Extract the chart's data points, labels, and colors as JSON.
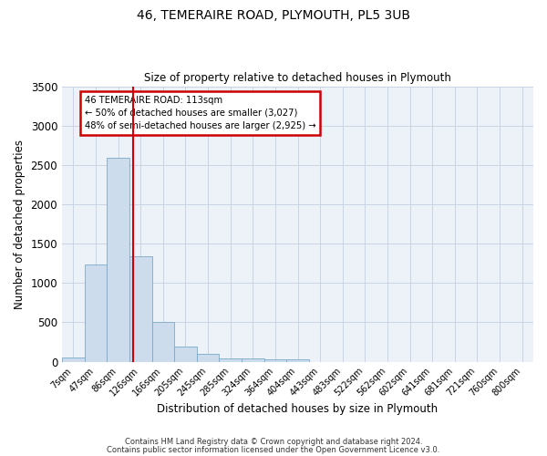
{
  "title_line1": "46, TEMERAIRE ROAD, PLYMOUTH, PL5 3UB",
  "title_line2": "Size of property relative to detached houses in Plymouth",
  "xlabel": "Distribution of detached houses by size in Plymouth",
  "ylabel": "Number of detached properties",
  "bar_labels": [
    "7sqm",
    "47sqm",
    "86sqm",
    "126sqm",
    "166sqm",
    "205sqm",
    "245sqm",
    "285sqm",
    "324sqm",
    "364sqm",
    "404sqm",
    "443sqm",
    "483sqm",
    "522sqm",
    "562sqm",
    "602sqm",
    "641sqm",
    "681sqm",
    "721sqm",
    "760sqm",
    "800sqm"
  ],
  "bar_values": [
    55,
    1230,
    2590,
    1340,
    500,
    195,
    100,
    45,
    45,
    30,
    30,
    0,
    0,
    0,
    0,
    0,
    0,
    0,
    0,
    0,
    0
  ],
  "bar_color": "#ccdcec",
  "bar_edge_color": "#7aaaca",
  "vline_x": 2.65,
  "annotation_line1": "46 TEMERAIRE ROAD: 113sqm",
  "annotation_line2": "← 50% of detached houses are smaller (3,027)",
  "annotation_line3": "48% of semi-detached houses are larger (2,925) →",
  "annotation_box_color": "#ffffff",
  "annotation_box_edge": "#cc0000",
  "vline_color": "#cc0000",
  "ylim": [
    0,
    3500
  ],
  "yticks": [
    0,
    500,
    1000,
    1500,
    2000,
    2500,
    3000,
    3500
  ],
  "grid_color": "#c8d4e4",
  "bg_color": "#edf1f8",
  "footer1": "Contains HM Land Registry data © Crown copyright and database right 2024.",
  "footer2": "Contains public sector information licensed under the Open Government Licence v3.0."
}
